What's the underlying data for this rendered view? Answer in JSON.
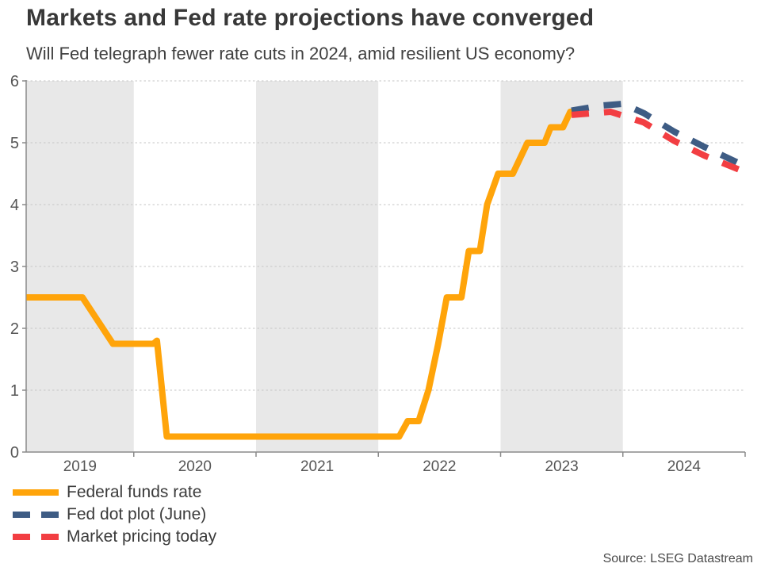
{
  "footer": {
    "source": "Source: LSEG Datastream"
  },
  "chart_data": {
    "type": "line",
    "title": "Markets and Fed rate projections have converged",
    "subtitle": "Will Fed telegraph fewer rate cuts in 2024, amid resilient US economy?",
    "xlabel": "",
    "ylabel": "",
    "x_range": [
      2019.12,
      2025.0
    ],
    "y_range": [
      0,
      6
    ],
    "grid": "horizontal-dotted",
    "legend_position": "bottom-left",
    "shaded_years": [
      2019,
      2021,
      2023
    ],
    "x_boundary_ticks": [
      2020,
      2021,
      2022,
      2023,
      2024,
      2025
    ],
    "x_ticks": [
      {
        "year": 2019,
        "label": "2019"
      },
      {
        "year": 2020,
        "label": "2020"
      },
      {
        "year": 2021,
        "label": "2021"
      },
      {
        "year": 2022,
        "label": "2022"
      },
      {
        "year": 2023,
        "label": "2023"
      },
      {
        "year": 2024,
        "label": "2024"
      }
    ],
    "y_ticks": [
      {
        "value": 0,
        "label": "0"
      },
      {
        "value": 1,
        "label": "1"
      },
      {
        "value": 2,
        "label": "2"
      },
      {
        "value": 3,
        "label": "3"
      },
      {
        "value": 4,
        "label": "4"
      },
      {
        "value": 5,
        "label": "5"
      },
      {
        "value": 6,
        "label": "6"
      }
    ],
    "colors": {
      "band": "#e8e8e8",
      "grid": "#c6c6c6",
      "axis": "#8a8a8a",
      "tick_text": "#565656"
    },
    "series": [
      {
        "id": "federal-funds-rate",
        "name": "Federal funds rate",
        "color": "#FFA40A",
        "style": "solid",
        "points": [
          [
            2019.123,
            2.5
          ],
          [
            2019.58,
            2.5
          ],
          [
            2019.83,
            1.75
          ],
          [
            2020.16,
            1.75
          ],
          [
            2020.19,
            1.8
          ],
          [
            2020.27,
            0.25
          ],
          [
            2022.17,
            0.25
          ],
          [
            2022.24,
            0.5
          ],
          [
            2022.33,
            0.5
          ],
          [
            2022.41,
            1.0
          ],
          [
            2022.49,
            1.75
          ],
          [
            2022.56,
            2.5
          ],
          [
            2022.68,
            2.5
          ],
          [
            2022.74,
            3.25
          ],
          [
            2022.83,
            3.25
          ],
          [
            2022.89,
            4.0
          ],
          [
            2022.98,
            4.5
          ],
          [
            2023.1,
            4.5
          ],
          [
            2023.22,
            5.0
          ],
          [
            2023.36,
            5.0
          ],
          [
            2023.41,
            5.25
          ],
          [
            2023.51,
            5.25
          ],
          [
            2023.57,
            5.5
          ],
          [
            2023.6,
            5.5
          ]
        ]
      },
      {
        "id": "fed-dot-plot",
        "name": "Fed dot plot (June)",
        "color": "#3E5C84",
        "style": "dashed",
        "points": [
          [
            2023.58,
            5.52
          ],
          [
            2023.82,
            5.6
          ],
          [
            2024.0,
            5.63
          ],
          [
            2024.17,
            5.48
          ],
          [
            2024.42,
            5.18
          ],
          [
            2024.67,
            4.93
          ],
          [
            2024.97,
            4.65
          ]
        ]
      },
      {
        "id": "market-pricing",
        "name": "Market pricing today",
        "color": "#F23E42",
        "style": "dashed",
        "points": [
          [
            2023.58,
            5.45
          ],
          [
            2023.9,
            5.5
          ],
          [
            2024.17,
            5.33
          ],
          [
            2024.42,
            5.03
          ],
          [
            2024.67,
            4.79
          ],
          [
            2024.97,
            4.55
          ]
        ]
      }
    ]
  }
}
